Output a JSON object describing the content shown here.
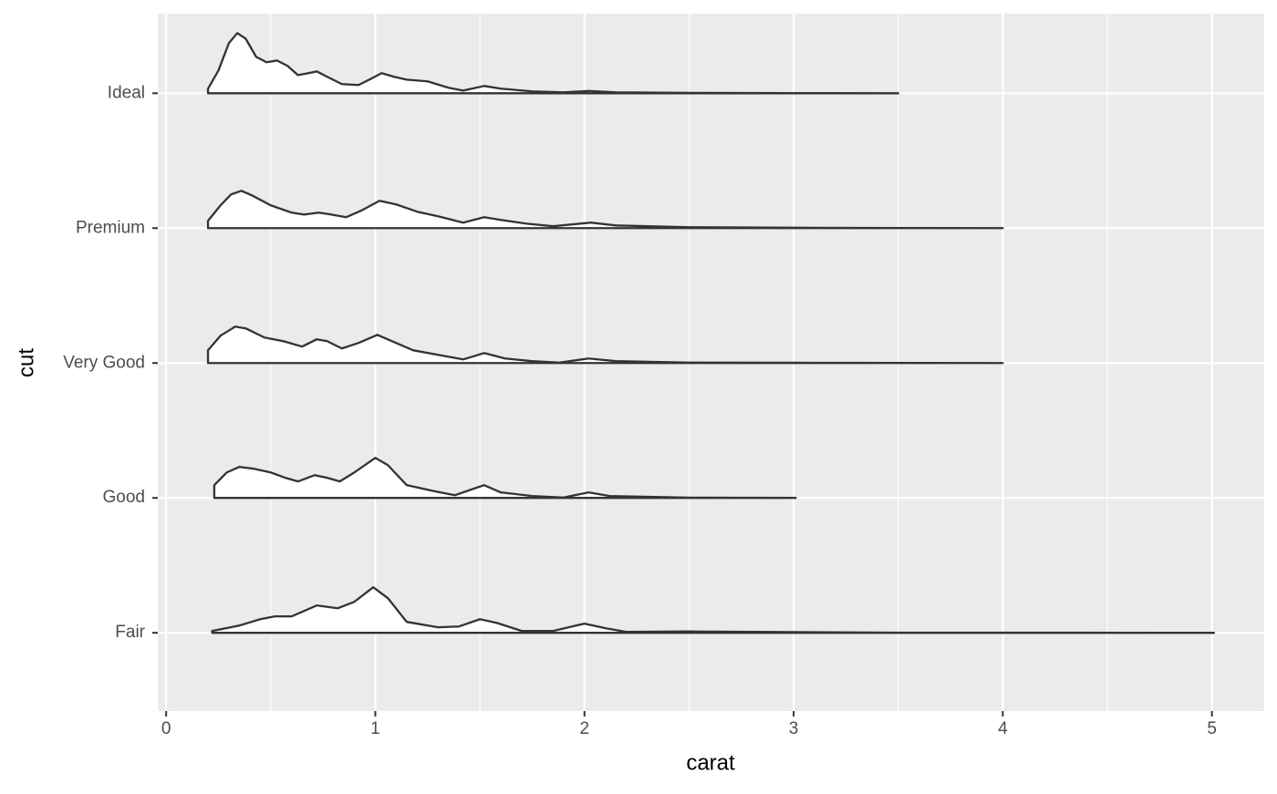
{
  "chart_data": {
    "type": "ridgeline",
    "x_label": "carat",
    "y_label": "cut",
    "xlim": [
      -0.04,
      5.25
    ],
    "xticks": [
      0,
      1,
      2,
      3,
      4,
      5
    ],
    "ylim": [
      0.42,
      5.59
    ],
    "fill": "#ffffff",
    "line_color": "#333333",
    "grid": true,
    "series": [
      {
        "name": "Fair",
        "x": [
          0.22,
          0.35,
          0.45,
          0.52,
          0.6,
          0.72,
          0.82,
          0.9,
          0.99,
          1.06,
          1.15,
          1.3,
          1.4,
          1.5,
          1.58,
          1.7,
          1.85,
          2.0,
          2.1,
          2.2,
          2.5,
          3.0,
          3.5,
          4.0,
          5.01
        ],
        "values": [
          0.014,
          0.054,
          0.101,
          0.122,
          0.122,
          0.203,
          0.182,
          0.23,
          0.338,
          0.257,
          0.081,
          0.041,
          0.047,
          0.101,
          0.074,
          0.014,
          0.014,
          0.068,
          0.034,
          0.007,
          0.01,
          0.005,
          0.001,
          0.001,
          0
        ]
      },
      {
        "name": "Good",
        "x": [
          0.23,
          0.29,
          0.35,
          0.42,
          0.5,
          0.57,
          0.63,
          0.71,
          0.77,
          0.83,
          0.9,
          1.0,
          1.06,
          1.15,
          1.27,
          1.38,
          1.52,
          1.6,
          1.75,
          1.9,
          2.02,
          2.12,
          2.5,
          3.01
        ],
        "values": [
          0.095,
          0.189,
          0.23,
          0.216,
          0.189,
          0.149,
          0.122,
          0.169,
          0.149,
          0.122,
          0.189,
          0.297,
          0.243,
          0.095,
          0.054,
          0.02,
          0.095,
          0.041,
          0.014,
          0.003,
          0.041,
          0.014,
          0.002,
          0
        ]
      },
      {
        "name": "Very Good",
        "x": [
          0.2,
          0.26,
          0.33,
          0.38,
          0.47,
          0.56,
          0.65,
          0.72,
          0.77,
          0.84,
          0.92,
          1.01,
          1.08,
          1.18,
          1.3,
          1.42,
          1.52,
          1.62,
          1.75,
          1.88,
          2.02,
          2.15,
          2.5,
          3.0,
          4.0
        ],
        "values": [
          0.095,
          0.203,
          0.27,
          0.257,
          0.189,
          0.162,
          0.122,
          0.176,
          0.162,
          0.108,
          0.149,
          0.209,
          0.162,
          0.095,
          0.061,
          0.027,
          0.074,
          0.034,
          0.014,
          0.003,
          0.034,
          0.014,
          0.003,
          0.002,
          0
        ]
      },
      {
        "name": "Premium",
        "x": [
          0.2,
          0.26,
          0.31,
          0.36,
          0.41,
          0.5,
          0.6,
          0.66,
          0.73,
          0.79,
          0.86,
          0.93,
          1.02,
          1.1,
          1.2,
          1.3,
          1.42,
          1.52,
          1.6,
          1.72,
          1.85,
          2.03,
          2.15,
          2.5,
          3.0,
          3.5,
          4.0
        ],
        "values": [
          0.054,
          0.169,
          0.25,
          0.277,
          0.243,
          0.169,
          0.115,
          0.101,
          0.115,
          0.101,
          0.081,
          0.128,
          0.203,
          0.176,
          0.122,
          0.088,
          0.041,
          0.081,
          0.061,
          0.034,
          0.014,
          0.041,
          0.02,
          0.007,
          0.003,
          0.001,
          0
        ]
      },
      {
        "name": "Ideal",
        "x": [
          0.2,
          0.25,
          0.3,
          0.34,
          0.38,
          0.43,
          0.48,
          0.53,
          0.58,
          0.63,
          0.68,
          0.72,
          0.77,
          0.84,
          0.92,
          0.98,
          1.03,
          1.09,
          1.15,
          1.25,
          1.35,
          1.42,
          1.52,
          1.6,
          1.75,
          1.9,
          2.02,
          2.15,
          2.5,
          3.0,
          3.5
        ],
        "values": [
          0.034,
          0.169,
          0.372,
          0.446,
          0.405,
          0.27,
          0.23,
          0.243,
          0.203,
          0.135,
          0.149,
          0.162,
          0.122,
          0.068,
          0.061,
          0.108,
          0.149,
          0.122,
          0.101,
          0.088,
          0.041,
          0.02,
          0.054,
          0.034,
          0.014,
          0.007,
          0.017,
          0.007,
          0.003,
          0.001,
          0
        ]
      }
    ]
  }
}
